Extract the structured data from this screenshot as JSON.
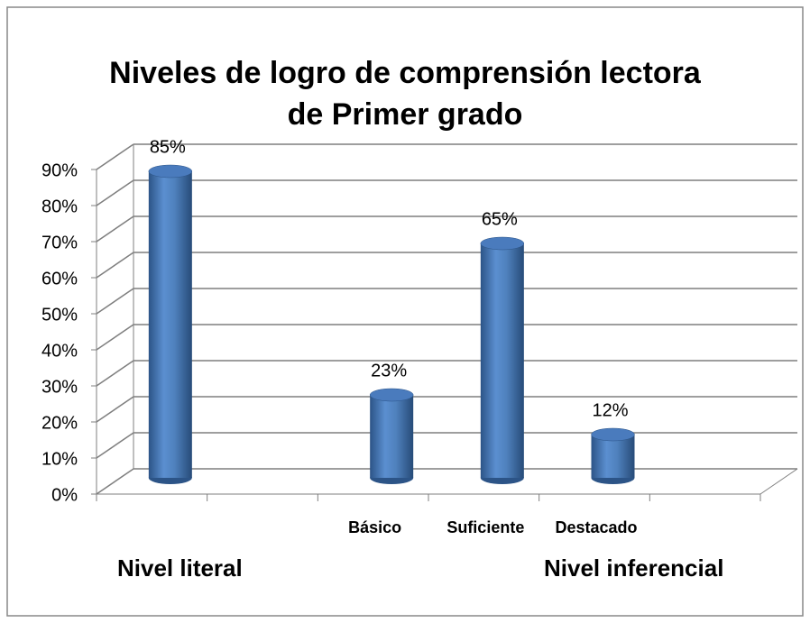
{
  "chart_data": {
    "type": "bar3d",
    "title": "Niveles de logro de comprensión lectora de Primer grado",
    "categories": [
      null,
      null,
      "Básico",
      "Suficiente",
      "Destacado",
      null
    ],
    "values": [
      85,
      null,
      23,
      65,
      12,
      null
    ],
    "value_labels": [
      "85%",
      null,
      "23%",
      "65%",
      "12%",
      null
    ],
    "color": "#4f81bd",
    "ylim": [
      0,
      90
    ],
    "yticks": [
      {
        "value": 0,
        "label": "0%"
      },
      {
        "value": 10,
        "label": "10%"
      },
      {
        "value": 20,
        "label": "20%"
      },
      {
        "value": 30,
        "label": "30%"
      },
      {
        "value": 40,
        "label": "40%"
      },
      {
        "value": 50,
        "label": "50%"
      },
      {
        "value": 60,
        "label": "60%"
      },
      {
        "value": 70,
        "label": "70%"
      },
      {
        "value": 80,
        "label": "80%"
      },
      {
        "value": 90,
        "label": "90%"
      }
    ],
    "grid": true,
    "annotations": [
      "Nivel literal",
      "Nivel inferencial"
    ]
  }
}
